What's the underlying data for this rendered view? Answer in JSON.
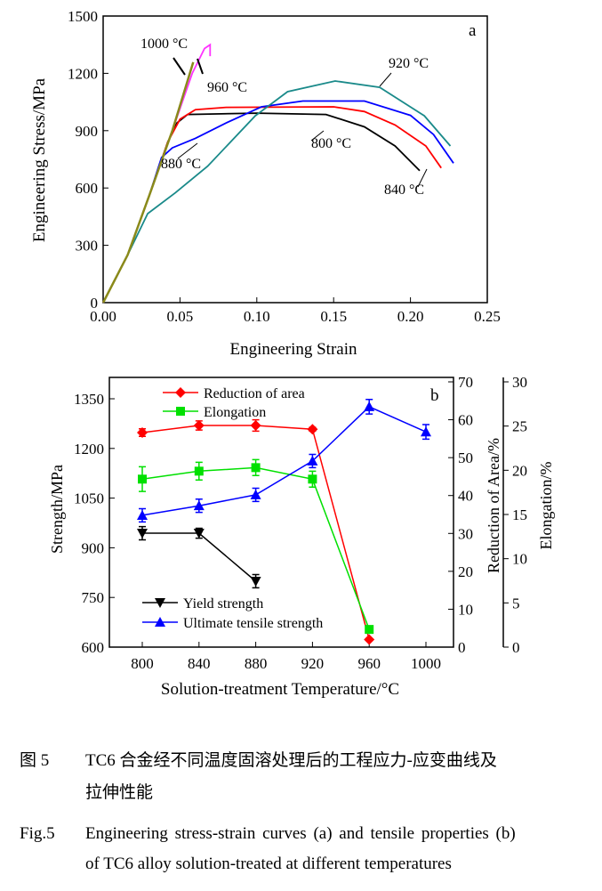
{
  "chart_data": [
    {
      "type": "line",
      "panel_label": "a",
      "xlabel": "Engineering Strain",
      "ylabel": "Engineering Stress/MPa",
      "xlim": [
        0,
        0.25
      ],
      "ylim": [
        0,
        1500
      ],
      "xticks": [
        "0.00",
        "0.05",
        "0.10",
        "0.15",
        "0.20",
        "0.25"
      ],
      "yticks": [
        "0",
        "300",
        "600",
        "900",
        "1200",
        "1500"
      ],
      "series": [
        {
          "name": "800 °C",
          "color": "#000000",
          "points": [
            [
              0,
              0
            ],
            [
              0.016,
              250
            ],
            [
              0.03,
              560
            ],
            [
              0.042,
              840
            ],
            [
              0.048,
              940
            ],
            [
              0.055,
              985
            ],
            [
              0.1,
              992
            ],
            [
              0.145,
              985
            ],
            [
              0.17,
              920
            ],
            [
              0.19,
              820
            ],
            [
              0.206,
              691
            ]
          ]
        },
        {
          "name": "840 °C",
          "color": "#ff0000",
          "points": [
            [
              0,
              0
            ],
            [
              0.016,
              250
            ],
            [
              0.03,
              560
            ],
            [
              0.042,
              840
            ],
            [
              0.05,
              960
            ],
            [
              0.06,
              1010
            ],
            [
              0.08,
              1022
            ],
            [
              0.15,
              1025
            ],
            [
              0.17,
              1000
            ],
            [
              0.19,
              930
            ],
            [
              0.21,
              820
            ],
            [
              0.22,
              705
            ]
          ]
        },
        {
          "name": "880 °C",
          "color": "#0000ff",
          "points": [
            [
              0,
              0
            ],
            [
              0.016,
              250
            ],
            [
              0.03,
              560
            ],
            [
              0.038,
              760
            ],
            [
              0.045,
              810
            ],
            [
              0.06,
              860
            ],
            [
              0.08,
              940
            ],
            [
              0.103,
              1025
            ],
            [
              0.13,
              1055
            ],
            [
              0.17,
              1055
            ],
            [
              0.2,
              980
            ],
            [
              0.215,
              880
            ],
            [
              0.228,
              730
            ]
          ]
        },
        {
          "name": "920 °C",
          "color": "#1a8a8a",
          "points": [
            [
              0,
              0
            ],
            [
              0.016,
              250
            ],
            [
              0.029,
              466
            ],
            [
              0.047,
              575
            ],
            [
              0.068,
              714
            ],
            [
              0.099,
              978
            ],
            [
              0.12,
              1104
            ],
            [
              0.151,
              1160
            ],
            [
              0.18,
              1127
            ],
            [
              0.209,
              978
            ],
            [
              0.226,
              820
            ]
          ]
        },
        {
          "name": "960 °C",
          "color": "#ff33ff",
          "points": [
            [
              0,
              0
            ],
            [
              0.016,
              250
            ],
            [
              0.03,
              560
            ],
            [
              0.045,
              900
            ],
            [
              0.058,
              1200
            ],
            [
              0.066,
              1330
            ],
            [
              0.0696,
              1350
            ],
            [
              0.0696,
              1290
            ]
          ]
        },
        {
          "name": "1000 °C",
          "color": "#8a8a1a",
          "points": [
            [
              0,
              0
            ],
            [
              0.016,
              250
            ],
            [
              0.03,
              560
            ],
            [
              0.045,
              900
            ],
            [
              0.0586,
              1258
            ]
          ]
        }
      ]
    },
    {
      "type": "line",
      "panel_label": "b",
      "xlabel": "Solution-treatment Temperature/°C",
      "ylabel_left": "Strength/MPa",
      "ylabel_right1": "Reduction of Area/%",
      "ylabel_right2": "Elongation/%",
      "x": [
        800,
        840,
        880,
        920,
        960,
        1000
      ],
      "xticks": [
        "800",
        "840",
        "880",
        "920",
        "960",
        "1000"
      ],
      "ylim_left": [
        600,
        1415
      ],
      "yticks_left": [
        "600",
        "750",
        "900",
        "1050",
        "1200",
        "1350"
      ],
      "ylim_right1": [
        0,
        70
      ],
      "yticks_right1": [
        "0",
        "10",
        "20",
        "30",
        "40",
        "50",
        "60",
        "70"
      ],
      "ylim_right2": [
        0,
        30
      ],
      "yticks_right2": [
        "0",
        "5",
        "10",
        "15",
        "20",
        "25",
        "30"
      ],
      "series": [
        {
          "name": "Reduction of area",
          "axis": "right1",
          "color": "#ff0000",
          "marker": "diamond",
          "x": [
            800,
            840,
            880,
            920,
            960
          ],
          "values": [
            56.6,
            58.5,
            58.5,
            57.5,
            2.0
          ],
          "errors": [
            1.0,
            1.2,
            1.5,
            0.5,
            0
          ]
        },
        {
          "name": "Elongation",
          "axis": "right2",
          "color": "#00e000",
          "marker": "square",
          "x": [
            800,
            840,
            880,
            920,
            960
          ],
          "values": [
            19.0,
            19.9,
            20.3,
            19.0,
            2.0
          ],
          "errors": [
            1.4,
            1.0,
            0.9,
            0.9,
            0
          ]
        },
        {
          "name": "Yield strength",
          "axis": "left",
          "color": "#000000",
          "marker": "triangle-down",
          "x": [
            800,
            840,
            880
          ],
          "values": [
            944,
            944,
            799
          ],
          "errors": [
            20,
            15,
            20
          ]
        },
        {
          "name": "Ultimate tensile strength",
          "axis": "left",
          "color": "#0000ff",
          "marker": "triangle-up",
          "x": [
            800,
            840,
            880,
            920,
            960,
            1000
          ],
          "values": [
            998,
            1027,
            1060,
            1162,
            1326,
            1250
          ],
          "errors": [
            20,
            20,
            20,
            20,
            22,
            22
          ]
        }
      ]
    }
  ],
  "annotations": [
    "1000 °C",
    "960 °C",
    "920 °C",
    "880 °C",
    "800 °C",
    "840 °C"
  ],
  "caption": {
    "cn_label": "图 5",
    "cn_line1": "TC6 合金经不同温度固溶处理后的工程应力-应变曲线及",
    "cn_line2": "拉伸性能",
    "en_label": "Fig.5",
    "en_line1": "Engineering stress-strain curves (a) and tensile properties (b)",
    "en_line2": "of TC6 alloy solution-treated at different temperatures"
  }
}
